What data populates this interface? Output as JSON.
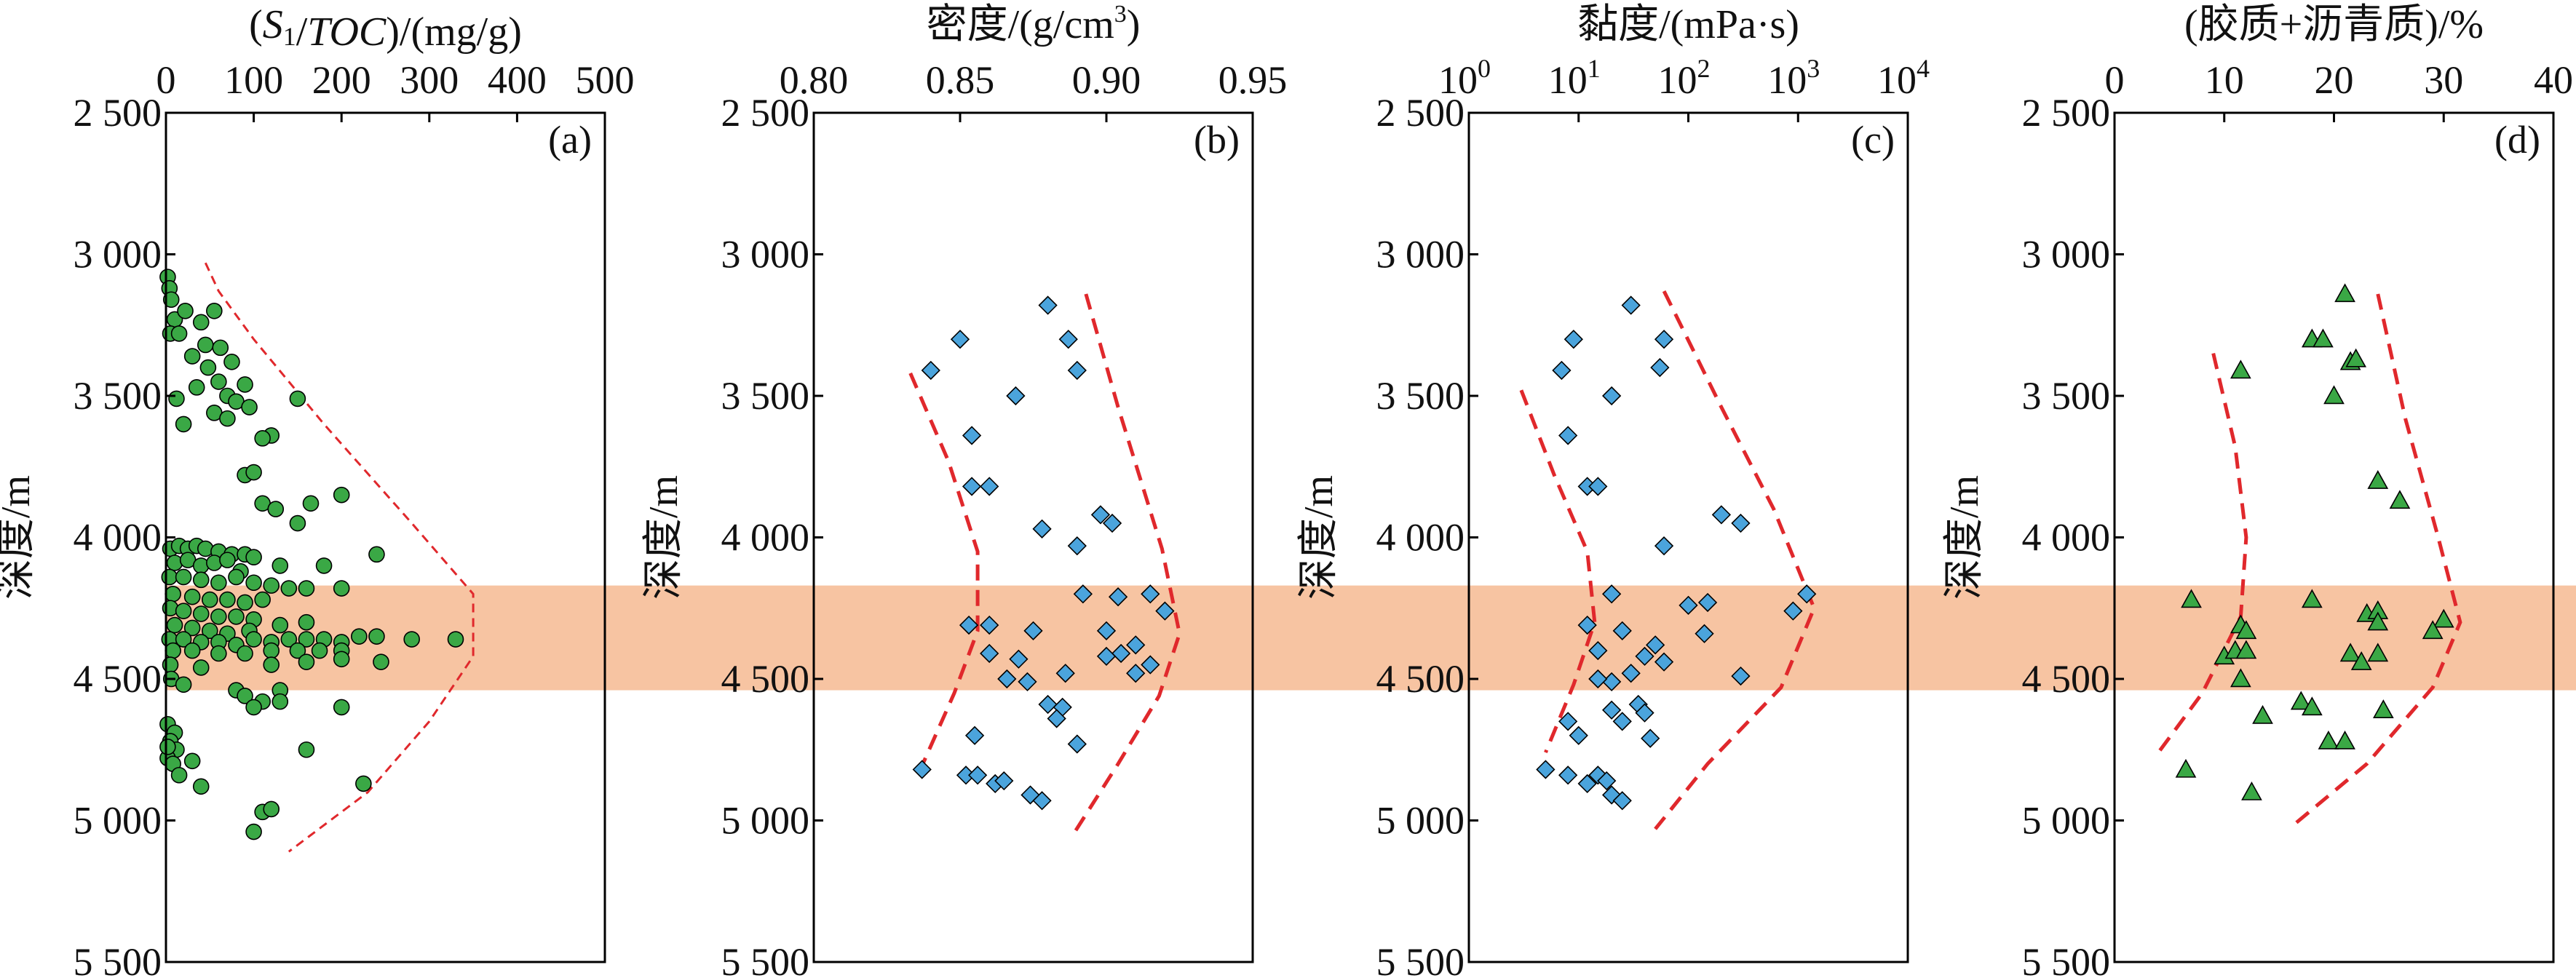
{
  "band": {
    "depth_range": [
      4170,
      4540
    ],
    "color": "#f7c4a2"
  },
  "colors": {
    "green": "#3aa845",
    "blue": "#4ba4dc",
    "red_dashed": "#e0282c",
    "frame": "#000000"
  },
  "y_axis": {
    "label": "深度/m",
    "ylim": [
      2500,
      5500
    ],
    "inverted": true,
    "ticks": [
      "2 500",
      "3 000",
      "3 500",
      "4 000",
      "4 500",
      "5 000",
      "5 500"
    ],
    "tick_values": [
      2500,
      3000,
      3500,
      4000,
      4500,
      5000,
      5500
    ]
  },
  "chart_data": [
    {
      "panel": "(a)",
      "type": "scatter",
      "marker": "circle",
      "color": "#3aa845",
      "xlabel": "(S1/TOC)/(mg/g)",
      "xlim": [
        0,
        500
      ],
      "xscale": "linear",
      "xticks": [
        "0",
        "100",
        "200",
        "300",
        "400",
        "500"
      ],
      "xtick_values": [
        0,
        100,
        200,
        300,
        400,
        500
      ],
      "points": [
        [
          2,
          3080
        ],
        [
          4,
          3120
        ],
        [
          6,
          3160
        ],
        [
          10,
          3230
        ],
        [
          22,
          3200
        ],
        [
          40,
          3240
        ],
        [
          55,
          3200
        ],
        [
          5,
          3280
        ],
        [
          15,
          3280
        ],
        [
          45,
          3320
        ],
        [
          62,
          3330
        ],
        [
          30,
          3360
        ],
        [
          75,
          3380
        ],
        [
          48,
          3400
        ],
        [
          60,
          3450
        ],
        [
          90,
          3460
        ],
        [
          35,
          3470
        ],
        [
          70,
          3500
        ],
        [
          12,
          3510
        ],
        [
          80,
          3520
        ],
        [
          95,
          3540
        ],
        [
          55,
          3560
        ],
        [
          70,
          3580
        ],
        [
          20,
          3600
        ],
        [
          120,
          3640
        ],
        [
          110,
          3650
        ],
        [
          150,
          3510
        ],
        [
          90,
          3780
        ],
        [
          100,
          3770
        ],
        [
          110,
          3880
        ],
        [
          125,
          3900
        ],
        [
          165,
          3880
        ],
        [
          200,
          3850
        ],
        [
          150,
          3950
        ],
        [
          5,
          4040
        ],
        [
          15,
          4030
        ],
        [
          25,
          4040
        ],
        [
          35,
          4030
        ],
        [
          45,
          4040
        ],
        [
          60,
          4050
        ],
        [
          75,
          4060
        ],
        [
          90,
          4060
        ],
        [
          100,
          4070
        ],
        [
          240,
          4060
        ],
        [
          10,
          4090
        ],
        [
          25,
          4080
        ],
        [
          40,
          4100
        ],
        [
          55,
          4090
        ],
        [
          70,
          4080
        ],
        [
          85,
          4120
        ],
        [
          130,
          4100
        ],
        [
          180,
          4100
        ],
        [
          4,
          4140
        ],
        [
          20,
          4140
        ],
        [
          40,
          4150
        ],
        [
          60,
          4160
        ],
        [
          80,
          4140
        ],
        [
          100,
          4160
        ],
        [
          120,
          4170
        ],
        [
          140,
          4180
        ],
        [
          160,
          4180
        ],
        [
          200,
          4180
        ],
        [
          8,
          4200
        ],
        [
          30,
          4210
        ],
        [
          50,
          4220
        ],
        [
          70,
          4220
        ],
        [
          90,
          4230
        ],
        [
          110,
          4220
        ],
        [
          5,
          4250
        ],
        [
          20,
          4260
        ],
        [
          40,
          4270
        ],
        [
          60,
          4280
        ],
        [
          80,
          4280
        ],
        [
          100,
          4290
        ],
        [
          10,
          4310
        ],
        [
          30,
          4320
        ],
        [
          50,
          4330
        ],
        [
          70,
          4340
        ],
        [
          95,
          4330
        ],
        [
          130,
          4310
        ],
        [
          160,
          4300
        ],
        [
          4,
          4360
        ],
        [
          20,
          4360
        ],
        [
          40,
          4370
        ],
        [
          60,
          4370
        ],
        [
          80,
          4380
        ],
        [
          100,
          4360
        ],
        [
          120,
          4370
        ],
        [
          140,
          4360
        ],
        [
          160,
          4360
        ],
        [
          180,
          4360
        ],
        [
          200,
          4370
        ],
        [
          220,
          4350
        ],
        [
          240,
          4350
        ],
        [
          280,
          4360
        ],
        [
          330,
          4360
        ],
        [
          8,
          4400
        ],
        [
          30,
          4400
        ],
        [
          60,
          4410
        ],
        [
          90,
          4410
        ],
        [
          120,
          4400
        ],
        [
          150,
          4400
        ],
        [
          175,
          4400
        ],
        [
          200,
          4400
        ],
        [
          245,
          4440
        ],
        [
          5,
          4450
        ],
        [
          40,
          4460
        ],
        [
          120,
          4450
        ],
        [
          160,
          4440
        ],
        [
          200,
          4430
        ],
        [
          6,
          4500
        ],
        [
          20,
          4520
        ],
        [
          80,
          4540
        ],
        [
          130,
          4540
        ],
        [
          90,
          4560
        ],
        [
          110,
          4580
        ],
        [
          100,
          4600
        ],
        [
          130,
          4580
        ],
        [
          200,
          4600
        ],
        [
          2,
          4660
        ],
        [
          10,
          4690
        ],
        [
          5,
          4720
        ],
        [
          12,
          4750
        ],
        [
          160,
          4750
        ],
        [
          2,
          4780
        ],
        [
          8,
          4800
        ],
        [
          30,
          4790
        ],
        [
          15,
          4840
        ],
        [
          40,
          4880
        ],
        [
          225,
          4870
        ],
        [
          2,
          4740
        ],
        [
          110,
          4970
        ],
        [
          120,
          4960
        ],
        [
          100,
          5040
        ]
      ],
      "envelope": [
        [
          45,
          3030
        ],
        [
          60,
          3130
        ],
        [
          100,
          3300
        ],
        [
          180,
          3600
        ],
        [
          280,
          3950
        ],
        [
          350,
          4200
        ],
        [
          350,
          4420
        ],
        [
          300,
          4650
        ],
        [
          230,
          4900
        ],
        [
          140,
          5110
        ]
      ]
    },
    {
      "panel": "(b)",
      "type": "scatter",
      "marker": "diamond",
      "color": "#4ba4dc",
      "xlabel": "密度/(g/cm3)",
      "xlim": [
        0.8,
        0.95
      ],
      "xscale": "linear",
      "xticks": [
        "0.80",
        "0.85",
        "0.90",
        "0.95"
      ],
      "xtick_values": [
        0.8,
        0.85,
        0.9,
        0.95
      ],
      "points": [
        [
          0.88,
          3180
        ],
        [
          0.85,
          3300
        ],
        [
          0.887,
          3300
        ],
        [
          0.84,
          3410
        ],
        [
          0.89,
          3410
        ],
        [
          0.869,
          3500
        ],
        [
          0.854,
          3640
        ],
        [
          0.854,
          3820
        ],
        [
          0.86,
          3820
        ],
        [
          0.898,
          3920
        ],
        [
          0.902,
          3950
        ],
        [
          0.878,
          3970
        ],
        [
          0.89,
          4030
        ],
        [
          0.892,
          4200
        ],
        [
          0.904,
          4210
        ],
        [
          0.915,
          4200
        ],
        [
          0.92,
          4260
        ],
        [
          0.853,
          4310
        ],
        [
          0.86,
          4310
        ],
        [
          0.875,
          4330
        ],
        [
          0.9,
          4330
        ],
        [
          0.91,
          4380
        ],
        [
          0.905,
          4410
        ],
        [
          0.9,
          4420
        ],
        [
          0.86,
          4410
        ],
        [
          0.87,
          4430
        ],
        [
          0.873,
          4510
        ],
        [
          0.866,
          4500
        ],
        [
          0.886,
          4480
        ],
        [
          0.915,
          4450
        ],
        [
          0.91,
          4480
        ],
        [
          0.88,
          4590
        ],
        [
          0.885,
          4600
        ],
        [
          0.883,
          4640
        ],
        [
          0.855,
          4700
        ],
        [
          0.89,
          4730
        ],
        [
          0.837,
          4820
        ],
        [
          0.852,
          4840
        ],
        [
          0.856,
          4840
        ],
        [
          0.862,
          4870
        ],
        [
          0.865,
          4860
        ],
        [
          0.874,
          4910
        ],
        [
          0.878,
          4930
        ]
      ],
      "envelope_left": [
        [
          0.833,
          3420
        ],
        [
          0.846,
          3730
        ],
        [
          0.856,
          4050
        ],
        [
          0.856,
          4330
        ],
        [
          0.848,
          4550
        ],
        [
          0.836,
          4830
        ]
      ],
      "envelope_right": [
        [
          0.893,
          3140
        ],
        [
          0.904,
          3540
        ],
        [
          0.919,
          4040
        ],
        [
          0.925,
          4340
        ],
        [
          0.918,
          4560
        ],
        [
          0.904,
          4800
        ],
        [
          0.888,
          5060
        ]
      ]
    },
    {
      "panel": "(c)",
      "type": "scatter",
      "marker": "diamond",
      "color": "#4ba4dc",
      "xlabel": "黏度/(mPa·s)",
      "xlim": [
        1,
        10000
      ],
      "xscale": "log",
      "xticks": [
        "10",
        "10",
        "10",
        "10",
        "10"
      ],
      "xtick_exponents": [
        "0",
        "1",
        "2",
        "3",
        "4"
      ],
      "xtick_values": [
        1,
        10,
        100,
        1000,
        10000
      ],
      "points": [
        [
          30,
          3180
        ],
        [
          9,
          3300
        ],
        [
          60,
          3300
        ],
        [
          7,
          3410
        ],
        [
          55,
          3400
        ],
        [
          20,
          3500
        ],
        [
          8,
          3640
        ],
        [
          12,
          3820
        ],
        [
          15,
          3820
        ],
        [
          60,
          4030
        ],
        [
          200,
          3920
        ],
        [
          300,
          3950
        ],
        [
          20,
          4200
        ],
        [
          100,
          4240
        ],
        [
          150,
          4230
        ],
        [
          1200,
          4200
        ],
        [
          900,
          4260
        ],
        [
          12,
          4310
        ],
        [
          25,
          4330
        ],
        [
          140,
          4340
        ],
        [
          50,
          4380
        ],
        [
          15,
          4400
        ],
        [
          40,
          4420
        ],
        [
          60,
          4440
        ],
        [
          20,
          4510
        ],
        [
          15,
          4500
        ],
        [
          30,
          4480
        ],
        [
          300,
          4490
        ],
        [
          35,
          4590
        ],
        [
          40,
          4620
        ],
        [
          20,
          4610
        ],
        [
          25,
          4650
        ],
        [
          8,
          4650
        ],
        [
          45,
          4710
        ],
        [
          10,
          4700
        ],
        [
          5,
          4820
        ],
        [
          8,
          4840
        ],
        [
          15,
          4840
        ],
        [
          12,
          4870
        ],
        [
          18,
          4860
        ],
        [
          20,
          4910
        ],
        [
          25,
          4930
        ]
      ],
      "envelope_left": [
        [
          3,
          3480
        ],
        [
          6,
          3780
        ],
        [
          12,
          4050
        ],
        [
          14,
          4300
        ],
        [
          9,
          4520
        ],
        [
          5,
          4760
        ]
      ],
      "envelope_right": [
        [
          60,
          3130
        ],
        [
          200,
          3540
        ],
        [
          600,
          3900
        ],
        [
          1400,
          4250
        ],
        [
          700,
          4530
        ],
        [
          150,
          4800
        ],
        [
          50,
          5030
        ]
      ]
    },
    {
      "panel": "(d)",
      "type": "scatter",
      "marker": "triangle",
      "color": "#3aa845",
      "xlabel": "(胶质+沥青质)/%",
      "xlim": [
        0,
        40
      ],
      "xscale": "linear",
      "xticks": [
        "0",
        "10",
        "20",
        "30",
        "40"
      ],
      "xtick_values": [
        0,
        10,
        20,
        30,
        40
      ],
      "points": [
        [
          21,
          3140
        ],
        [
          18,
          3300
        ],
        [
          19,
          3300
        ],
        [
          21.5,
          3380
        ],
        [
          22,
          3370
        ],
        [
          11.5,
          3410
        ],
        [
          20,
          3500
        ],
        [
          24,
          3800
        ],
        [
          26,
          3870
        ],
        [
          7,
          4220
        ],
        [
          18,
          4220
        ],
        [
          23,
          4270
        ],
        [
          24,
          4260
        ],
        [
          24,
          4300
        ],
        [
          30,
          4290
        ],
        [
          11.5,
          4310
        ],
        [
          12,
          4330
        ],
        [
          29,
          4330
        ],
        [
          10,
          4420
        ],
        [
          11,
          4400
        ],
        [
          12,
          4400
        ],
        [
          21.5,
          4410
        ],
        [
          22.5,
          4440
        ],
        [
          24,
          4410
        ],
        [
          11.5,
          4500
        ],
        [
          17,
          4580
        ],
        [
          18,
          4600
        ],
        [
          24.5,
          4610
        ],
        [
          13.5,
          4630
        ],
        [
          19.5,
          4720
        ],
        [
          21,
          4720
        ],
        [
          6.5,
          4820
        ],
        [
          12.5,
          4900
        ]
      ],
      "envelope_left": [
        [
          9,
          3350
        ],
        [
          11,
          3680
        ],
        [
          12,
          4000
        ],
        [
          11.5,
          4280
        ],
        [
          8,
          4550
        ],
        [
          4,
          4760
        ]
      ],
      "envelope_right": [
        [
          24,
          3140
        ],
        [
          26.5,
          3580
        ],
        [
          29.5,
          4000
        ],
        [
          31.5,
          4300
        ],
        [
          29,
          4530
        ],
        [
          23,
          4800
        ],
        [
          16.5,
          5010
        ]
      ]
    }
  ]
}
